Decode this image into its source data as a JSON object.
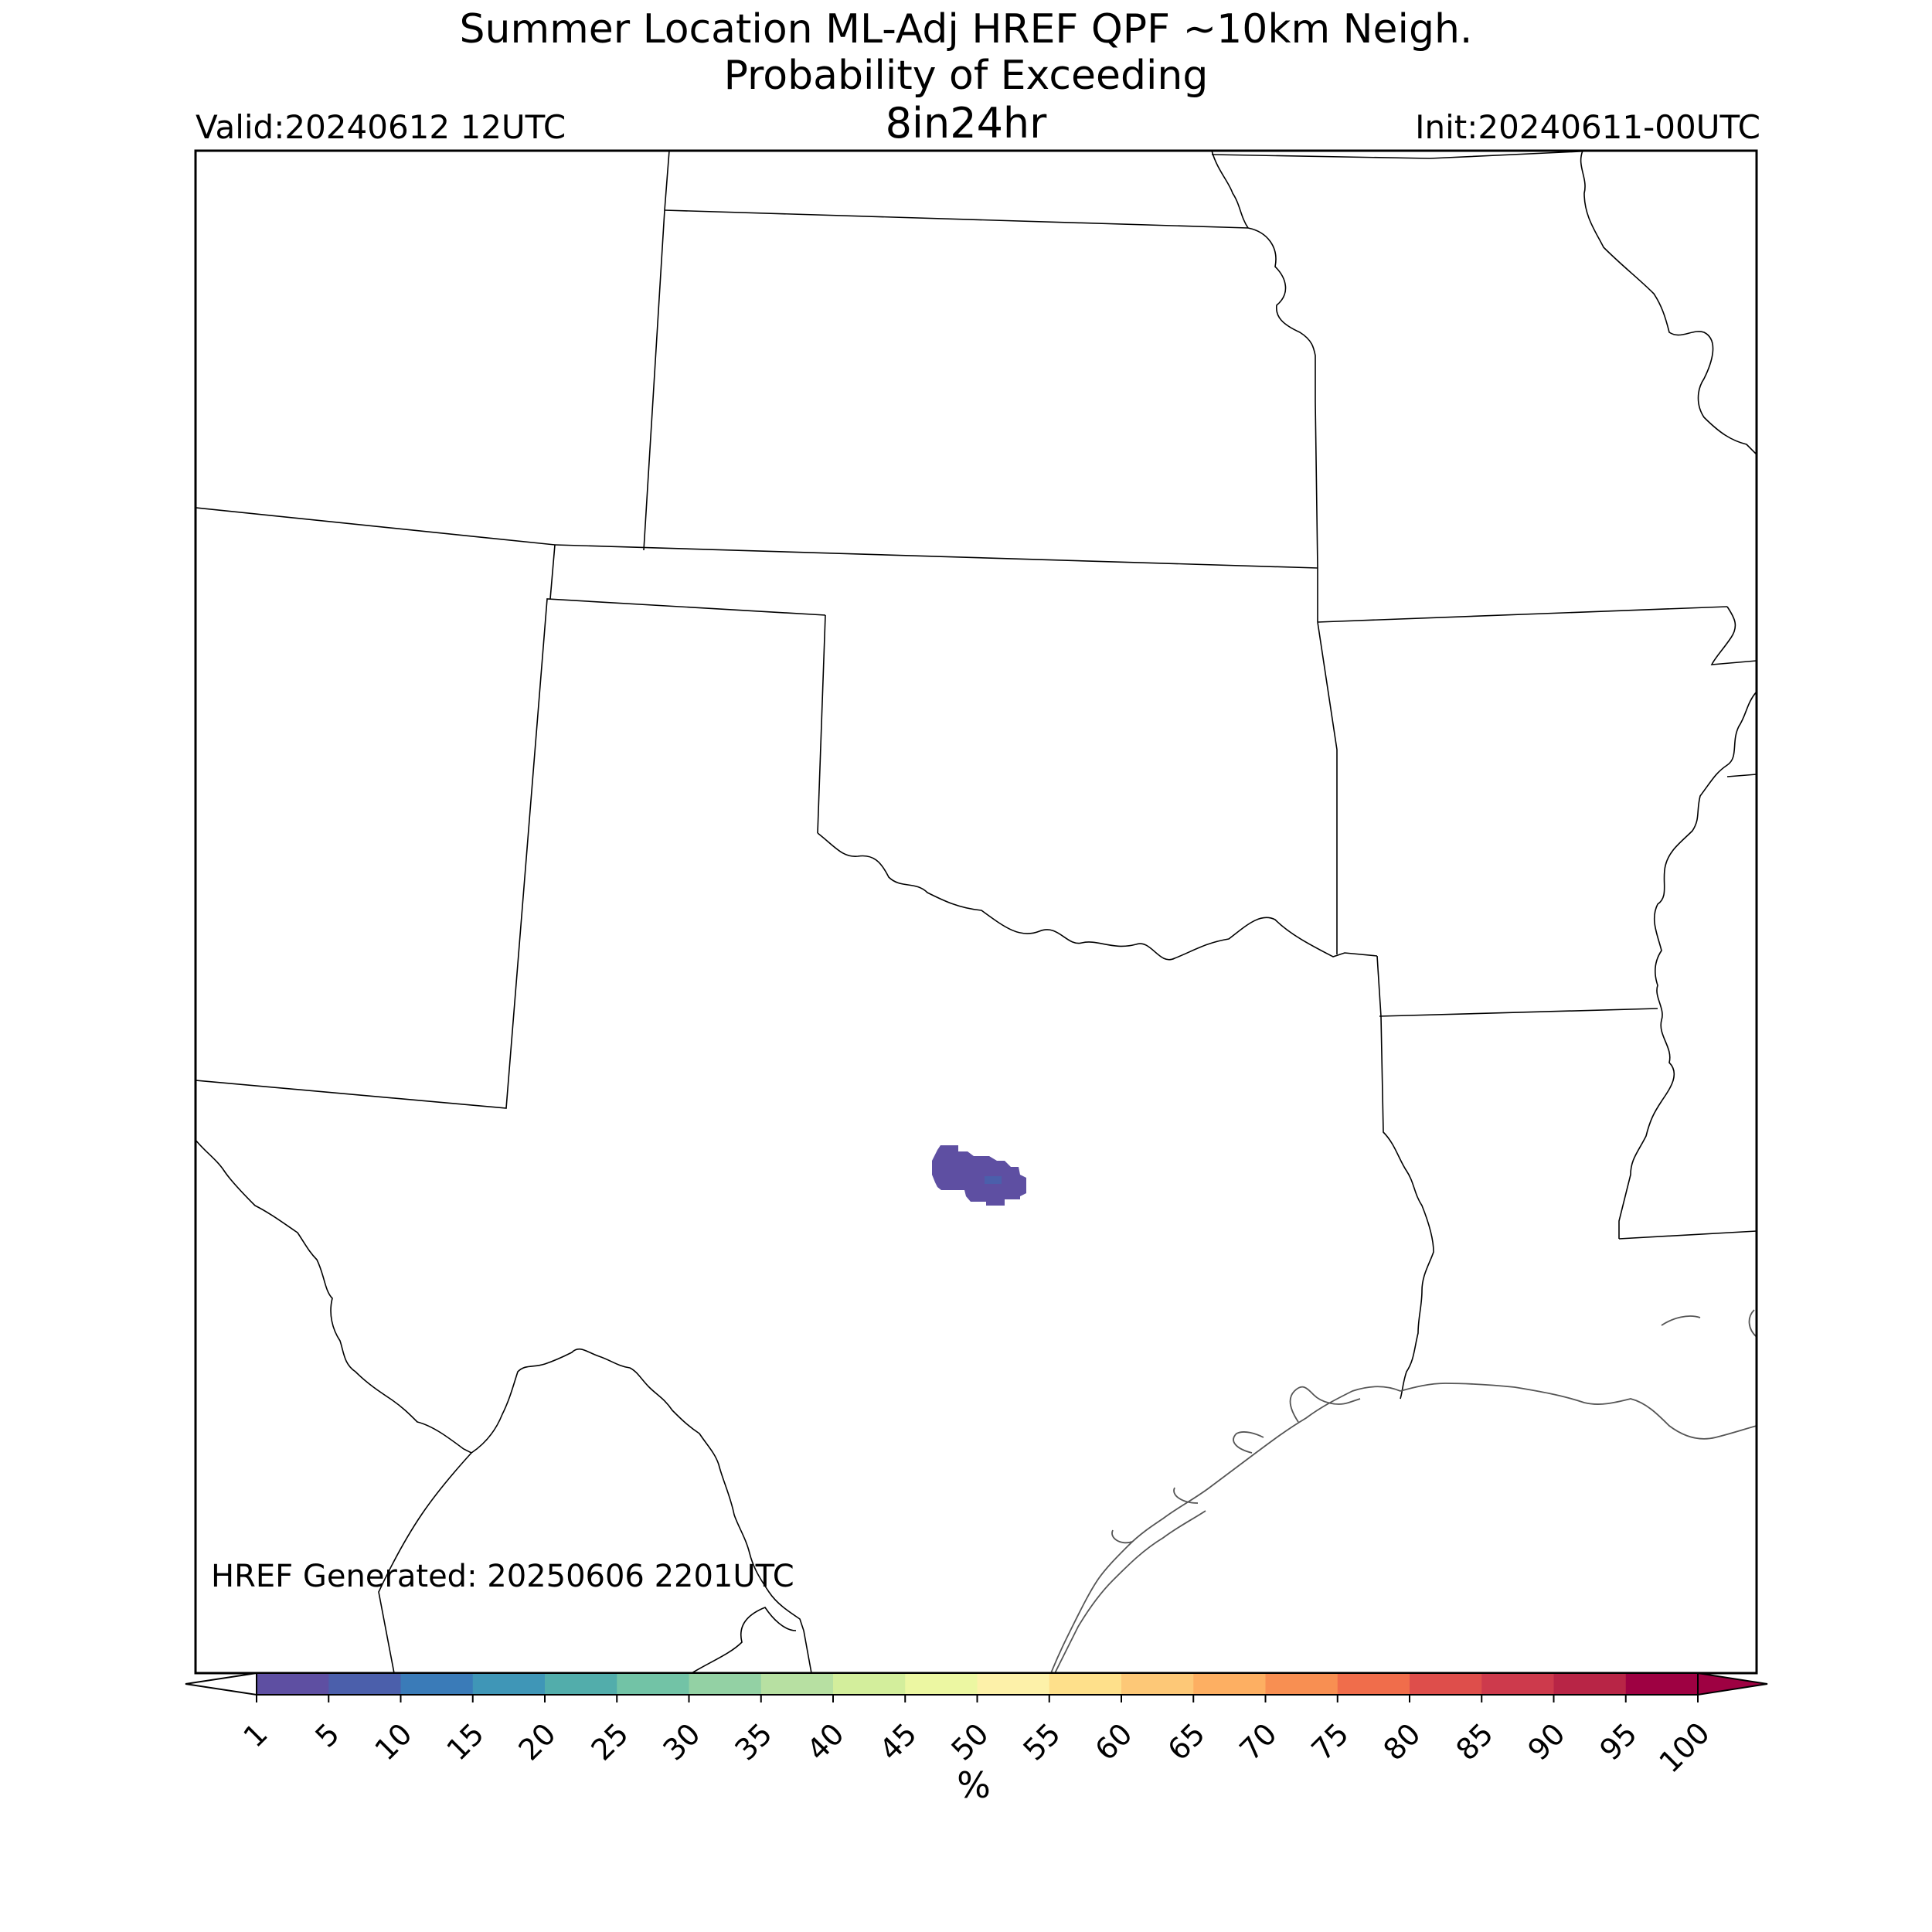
{
  "header": {
    "title_line1": "Summer Location ML-Adj HREF QPF ~10km Neigh.",
    "title_line2": "Probability of Exceeding",
    "title_line3": "8in24hr",
    "valid": "Valid:20240612 12UTC",
    "init": "Init:20240611-00UTC"
  },
  "footer": {
    "generated": "HREF Generated: 20250606 2201UTC"
  },
  "colorbar": {
    "unit": "%",
    "ticks": [
      "1",
      "5",
      "10",
      "15",
      "20",
      "25",
      "30",
      "35",
      "40",
      "45",
      "50",
      "55",
      "60",
      "65",
      "70",
      "75",
      "80",
      "85",
      "90",
      "95",
      "100"
    ],
    "colors": [
      "#5e4fa2",
      "#4b5fab",
      "#3a7bb8",
      "#3f96b7",
      "#52adab",
      "#72c3a6",
      "#93d1a4",
      "#b7e0a2",
      "#d3ee9c",
      "#ecf7a2",
      "#fdf1a9",
      "#fee08b",
      "#fdc877",
      "#fdaf62",
      "#f88f52",
      "#f06d4b",
      "#de4e4b",
      "#cd3a4c",
      "#b82546",
      "#9e0142"
    ],
    "extend": "both"
  },
  "map": {
    "region": "South-Central United States",
    "max_probability_percent": 10,
    "probability_areas": [
      {
        "name": "central-texas",
        "category": "1-5%"
      },
      {
        "name": "central-texas-core",
        "category": "5-10%"
      }
    ]
  }
}
